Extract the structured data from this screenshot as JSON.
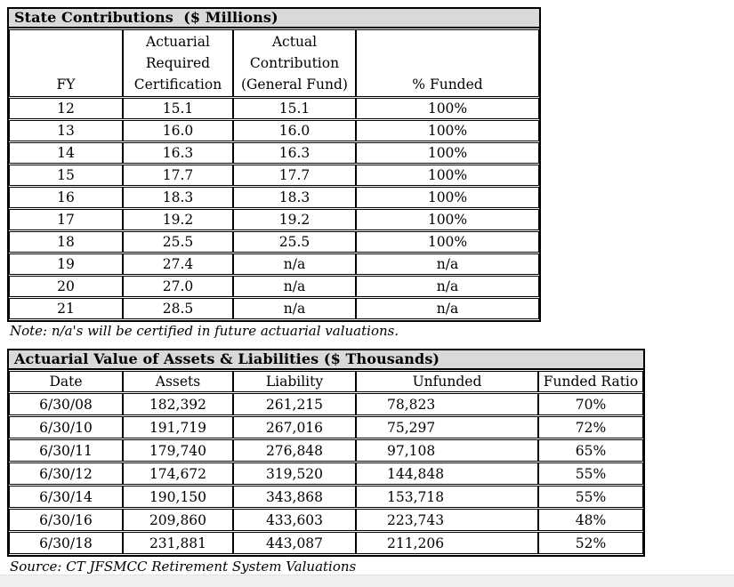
{
  "page": {
    "note": "Note: n/a's will be certified in future actuarial valuations.",
    "source": "Source: CT JFSMCC Retirement System Valuations"
  },
  "colors": {
    "title_bar_bg": "#d9d9d9",
    "table_border": "#000000",
    "footer_strip_bg": "#f0f0f0",
    "page_bg": "#ffffff"
  },
  "state_contributions": {
    "title": "State Contributions  ($ Millions)",
    "headers": [
      "FY",
      "Actuarial\nRequired\nCertification",
      "Actual\nContribution\n(General Fund)",
      "% Funded"
    ],
    "rows": [
      [
        "12",
        "15.1",
        "15.1",
        "100%"
      ],
      [
        "13",
        "16.0",
        "16.0",
        "100%"
      ],
      [
        "14",
        "16.3",
        "16.3",
        "100%"
      ],
      [
        "15",
        "17.7",
        "17.7",
        "100%"
      ],
      [
        "16",
        "18.3",
        "18.3",
        "100%"
      ],
      [
        "17",
        "19.2",
        "19.2",
        "100%"
      ],
      [
        "18",
        "25.5",
        "25.5",
        "100%"
      ],
      [
        "19",
        "27.4",
        "n/a",
        "n/a"
      ],
      [
        "20",
        "27.0",
        "n/a",
        "n/a"
      ],
      [
        "21",
        "28.5",
        "n/a",
        "n/a"
      ]
    ]
  },
  "assets_liabilities": {
    "title": "Actuarial Value of Assets & Liabilities ($ Thousands)",
    "headers": [
      "Date",
      "Assets",
      "Liability",
      "Unfunded",
      "Funded Ratio"
    ],
    "rows": [
      [
        "6/30/08",
        "182,392",
        "261,215",
        "78,823",
        "70%"
      ],
      [
        "6/30/10",
        "191,719",
        "267,016",
        "75,297",
        "72%"
      ],
      [
        "6/30/11",
        "179,740",
        "276,848",
        "97,108",
        "65%"
      ],
      [
        "6/30/12",
        "174,672",
        "319,520",
        "144,848",
        "55%"
      ],
      [
        "6/30/14",
        "190,150",
        "343,868",
        "153,718",
        "55%"
      ],
      [
        "6/30/16",
        "209,860",
        "433,603",
        "223,743",
        "48%"
      ],
      [
        "6/30/18",
        "231,881",
        "443,087",
        "211,206",
        "52%"
      ]
    ]
  }
}
